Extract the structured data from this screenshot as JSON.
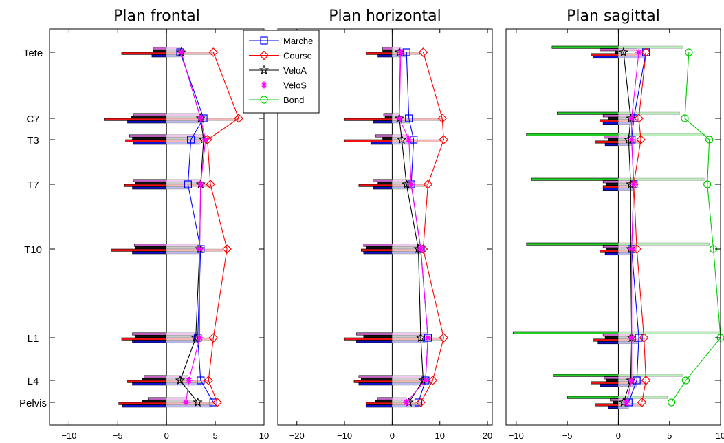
{
  "chart_data": {
    "type": "bar",
    "vertebra_labels": [
      "Tete",
      "C7",
      "T3",
      "T7",
      "T10",
      "L1",
      "L4",
      "Pelvis"
    ],
    "legend": [
      {
        "name": "Marche",
        "color": "#0000ff",
        "marker": "square"
      },
      {
        "name": "Course",
        "color": "#ff0000",
        "marker": "diamond"
      },
      {
        "name": "VeloA",
        "color": "#000000",
        "marker": "star"
      },
      {
        "name": "VeloS",
        "color": "#ff00ff",
        "marker": "asterisk"
      },
      {
        "name": "Bond",
        "color": "#00cc00",
        "marker": "circle"
      }
    ],
    "bar_colors": {
      "Bond": "#22cc22",
      "VeloS": "#cc66cc",
      "VeloA": "#111111",
      "Course": "#ee1111",
      "Marche": "#1111cc",
      "Bond_light": "#bbeebb",
      "VeloS_light": "#f0c8f0",
      "VeloA_light": "#cccccc",
      "Course_light": "#f5b8b8",
      "Marche_light": "#b8b8f0"
    },
    "panels": [
      {
        "title": "Plan frontal",
        "xlim": [
          -12,
          10
        ],
        "xticks": [
          -10,
          -5,
          0,
          5,
          10
        ],
        "series": [
          {
            "name": "Marche",
            "values": [
              1.4,
              3.8,
              2.5,
              2.2,
              3.5,
              3.2,
              3.5,
              4.8
            ]
          },
          {
            "name": "Course",
            "values": [
              4.8,
              7.4,
              4.2,
              4.5,
              6.2,
              4.8,
              4.3,
              5.2
            ]
          },
          {
            "name": "VeloA",
            "values": [
              1.5,
              3.5,
              3.8,
              3.5,
              3.4,
              3.0,
              1.4,
              3.2
            ]
          },
          {
            "name": "VeloS",
            "values": [
              1.5,
              3.5,
              4.0,
              3.5,
              3.4,
              3.4,
              2.3,
              2.0
            ]
          }
        ],
        "bars": {
          "Marche": {
            "neg": [
              1.5,
              4.0,
              3.4,
              3.5,
              3.5,
              3.5,
              3.5,
              4.5
            ],
            "pos": [
              1.5,
              3.8,
              3.4,
              2.2,
              3.5,
              3.2,
              3.5,
              4.6
            ]
          },
          "Course": {
            "neg": [
              4.6,
              6.4,
              4.2,
              4.3,
              5.7,
              4.6,
              4.0,
              4.9
            ],
            "pos": [
              4.8,
              7.4,
              4.2,
              4.5,
              5.8,
              4.7,
              4.3,
              5.0
            ]
          },
          "VeloA": {
            "neg": [
              1.4,
              3.6,
              3.5,
              3.2,
              3.2,
              3.2,
              2.5,
              2.5
            ],
            "pos": [
              1.4,
              3.5,
              3.5,
              3.4,
              3.4,
              3.1,
              2.4,
              3.1
            ]
          },
          "VeloS": {
            "neg": [
              1.3,
              3.4,
              3.8,
              3.4,
              3.3,
              3.5,
              2.3,
              1.9
            ],
            "pos": [
              1.4,
              3.5,
              3.8,
              3.4,
              3.3,
              3.4,
              2.2,
              2.0
            ]
          }
        }
      },
      {
        "title": "Plan horizontal",
        "xlim": [
          -24,
          21
        ],
        "xticks": [
          -20,
          -10,
          0,
          10,
          20
        ],
        "series": [
          {
            "name": "Marche",
            "values": [
              3.0,
              3.5,
              4.5,
              4.0,
              6.0,
              7.5,
              7.0,
              5.5
            ]
          },
          {
            "name": "Course",
            "values": [
              6.5,
              10.5,
              10.8,
              7.5,
              6.5,
              10.8,
              8.5,
              6.0
            ]
          },
          {
            "name": "VeloA",
            "values": [
              1.5,
              1.5,
              2.0,
              3.0,
              5.5,
              6.0,
              6.5,
              3.5
            ]
          },
          {
            "name": "VeloS",
            "values": [
              1.8,
              1.5,
              3.5,
              4.0,
              6.0,
              7.5,
              7.0,
              3.0
            ]
          }
        ],
        "bars": {
          "Marche": {
            "neg": [
              3.0,
              4.0,
              4.5,
              4.0,
              6.0,
              7.5,
              7.0,
              5.5
            ],
            "pos": [
              3.0,
              3.5,
              4.5,
              4.0,
              6.0,
              7.5,
              7.0,
              5.5
            ]
          },
          "Course": {
            "neg": [
              5.5,
              10.0,
              10.0,
              7.0,
              6.5,
              10.0,
              8.0,
              5.5
            ],
            "pos": [
              6.0,
              10.5,
              10.5,
              7.5,
              6.5,
              10.5,
              8.5,
              6.0
            ]
          },
          "VeloA": {
            "neg": [
              2.0,
              1.5,
              2.0,
              3.0,
              5.5,
              6.0,
              6.5,
              3.5
            ],
            "pos": [
              1.5,
              1.5,
              2.0,
              3.0,
              5.5,
              6.0,
              6.5,
              3.5
            ]
          },
          "VeloS": {
            "neg": [
              2.0,
              1.8,
              3.5,
              4.0,
              6.0,
              7.5,
              7.0,
              3.0
            ],
            "pos": [
              1.8,
              1.5,
              3.5,
              4.0,
              6.0,
              7.5,
              7.0,
              3.0
            ]
          }
        }
      },
      {
        "title": "Plan sagittal",
        "xlim": [
          -11,
          10
        ],
        "xticks": [
          -10,
          -5,
          0,
          5,
          10
        ],
        "series": [
          {
            "name": "Marche",
            "values": [
              2.7,
              1.5,
              1.3,
              1.5,
              1.3,
              2.0,
              1.8,
              1.0
            ]
          },
          {
            "name": "Course",
            "values": [
              2.7,
              2.0,
              2.2,
              1.5,
              1.8,
              2.5,
              2.7,
              2.3
            ]
          },
          {
            "name": "VeloA",
            "values": [
              0.5,
              1.2,
              1.0,
              1.2,
              1.2,
              1.3,
              1.2,
              0.5
            ]
          },
          {
            "name": "VeloS",
            "values": [
              2.0,
              1.3,
              1.3,
              1.5,
              1.3,
              1.3,
              1.3,
              0.8
            ]
          },
          {
            "name": "Bond",
            "values": [
              6.9,
              6.5,
              8.9,
              8.7,
              9.3,
              10.0,
              6.6,
              5.2
            ]
          }
        ],
        "bars": {
          "Bond": {
            "neg": [
              6.5,
              6.0,
              9.0,
              8.5,
              9.0,
              10.3,
              6.4,
              5.0
            ],
            "pos": [
              6.3,
              6.0,
              8.5,
              8.4,
              8.9,
              10.0,
              6.3,
              4.8
            ]
          },
          "VeloS": {
            "neg": [
              1.8,
              1.5,
              1.4,
              1.5,
              1.5,
              1.5,
              1.4,
              0.8
            ],
            "pos": [
              1.8,
              1.4,
              1.3,
              1.5,
              1.3,
              1.3,
              1.3,
              0.8
            ]
          },
          "VeloA": {
            "neg": [
              0.3,
              1.0,
              1.0,
              1.2,
              1.2,
              1.3,
              1.2,
              0.5
            ],
            "pos": [
              0.5,
              1.2,
              1.0,
              1.2,
              1.2,
              1.3,
              1.2,
              0.5
            ]
          },
          "Course": {
            "neg": [
              2.7,
              1.8,
              2.3,
              1.5,
              1.8,
              2.5,
              2.7,
              2.3
            ],
            "pos": [
              2.7,
              2.0,
              2.2,
              1.5,
              1.8,
              2.5,
              2.7,
              2.3
            ]
          },
          "Marche": {
            "neg": [
              2.5,
              1.5,
              1.3,
              1.5,
              1.3,
              2.0,
              1.8,
              1.0
            ],
            "pos": [
              2.7,
              1.5,
              1.3,
              1.5,
              1.3,
              2.0,
              1.8,
              1.0
            ]
          }
        }
      }
    ]
  }
}
